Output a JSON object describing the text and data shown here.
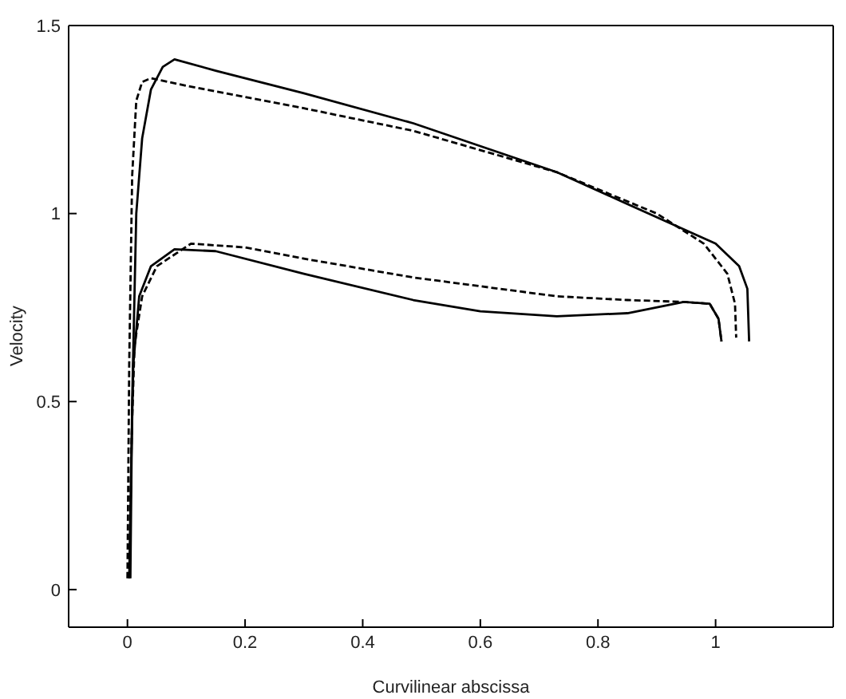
{
  "chart_data": {
    "type": "line",
    "xlabel": "Curvilinear abscissa",
    "ylabel": "Velocity",
    "xlim": [
      -0.1,
      1.2
    ],
    "xticks": [
      0,
      0.2,
      0.4,
      0.6,
      0.8,
      1
    ],
    "ylim": [
      -0.1,
      1.5
    ],
    "yticks": [
      0,
      0.5,
      1,
      1.5
    ],
    "series": [
      {
        "color": "#000000",
        "line_style": "solid",
        "x": [
          0.005,
          0.008,
          0.015,
          0.025,
          0.04,
          0.06,
          0.08,
          0.15,
          0.3,
          0.486,
          0.73,
          0.9,
          1.0,
          1.04,
          1.054,
          1.057
        ],
        "values": [
          0.03,
          0.5,
          1.0,
          1.2,
          1.33,
          1.39,
          1.41,
          1.38,
          1.32,
          1.24,
          1.11,
          0.99,
          0.92,
          0.86,
          0.8,
          0.66
        ]
      },
      {
        "color": "#000000",
        "line_style": "dashed",
        "x": [
          0.0,
          0.003,
          0.008,
          0.015,
          0.025,
          0.04,
          0.1,
          0.3,
          0.486,
          0.73,
          0.9,
          0.98,
          1.02,
          1.033,
          1.035
        ],
        "values": [
          0.03,
          0.6,
          1.1,
          1.3,
          1.35,
          1.36,
          1.34,
          1.28,
          1.22,
          1.11,
          1.0,
          0.92,
          0.84,
          0.76,
          0.67
        ]
      },
      {
        "color": "#000000",
        "line_style": "solid",
        "x": [
          0.003,
          0.006,
          0.01,
          0.02,
          0.04,
          0.08,
          0.15,
          0.3,
          0.486,
          0.6,
          0.73,
          0.85,
          0.946,
          0.99,
          1.005,
          1.01
        ],
        "values": [
          0.03,
          0.3,
          0.6,
          0.78,
          0.86,
          0.905,
          0.9,
          0.84,
          0.77,
          0.74,
          0.727,
          0.735,
          0.765,
          0.76,
          0.72,
          0.66
        ]
      },
      {
        "color": "#000000",
        "line_style": "dashed",
        "x": [
          0.003,
          0.007,
          0.012,
          0.025,
          0.05,
          0.108,
          0.2,
          0.3,
          0.486,
          0.73,
          0.85,
          0.946,
          0.99,
          1.005,
          1.01
        ],
        "values": [
          0.03,
          0.4,
          0.65,
          0.78,
          0.86,
          0.92,
          0.91,
          0.88,
          0.83,
          0.78,
          0.77,
          0.765,
          0.76,
          0.72,
          0.66
        ]
      }
    ]
  }
}
